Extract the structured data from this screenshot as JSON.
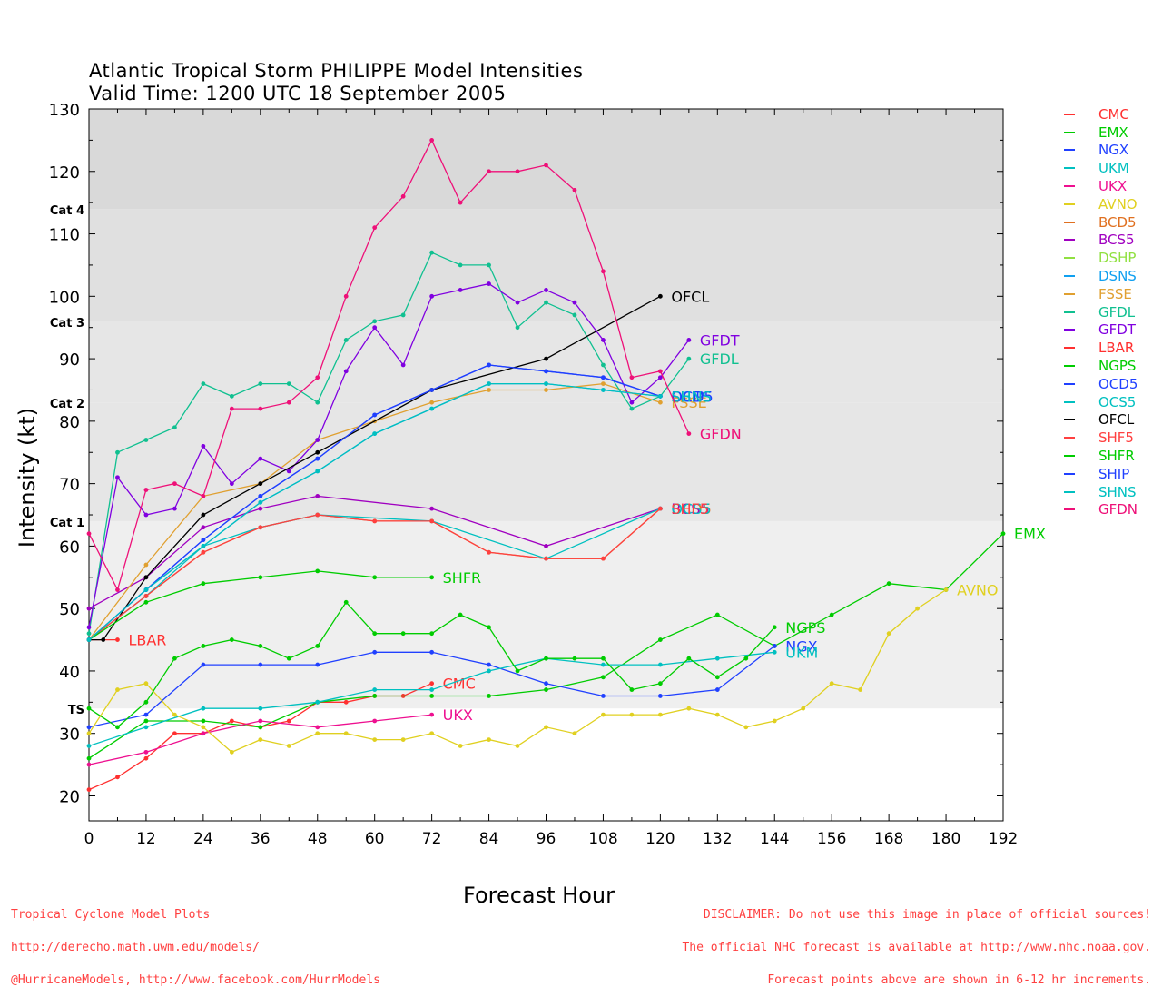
{
  "title": {
    "line1": "Atlantic Tropical Storm PHILIPPE Model Intensities",
    "line2": "Valid Time: 1200 UTC 18 September 2005"
  },
  "footer": {
    "left": [
      "Tropical Cyclone Model Plots",
      "http://derecho.math.uwm.edu/models/",
      "@HurricaneModels, http://www.facebook.com/HurrModels"
    ],
    "right": [
      "DISCLAIMER: Do not use this image in place of official sources!",
      "The official NHC forecast is available at http://www.nhc.noaa.gov.",
      "Forecast points above are shown in 6-12 hr increments."
    ]
  },
  "chart_data": {
    "type": "line",
    "xlabel": "Forecast Hour",
    "ylabel": "Intensity (kt)",
    "xlim": [
      0,
      192
    ],
    "ylim": [
      16,
      130
    ],
    "xticks": [
      0,
      12,
      24,
      36,
      48,
      60,
      72,
      84,
      96,
      108,
      120,
      132,
      144,
      156,
      168,
      180,
      192
    ],
    "yticks": [
      20,
      30,
      40,
      50,
      60,
      70,
      80,
      90,
      100,
      110,
      120,
      130
    ],
    "category_bands": [
      {
        "label": "TS",
        "from": 34,
        "to": 64,
        "color": "#efefef"
      },
      {
        "label": "Cat 1",
        "from": 64,
        "to": 83,
        "color": "#e6e6e6"
      },
      {
        "label": "Cat 2",
        "from": 83,
        "to": 96,
        "color": "#e6e6e6"
      },
      {
        "label": "Cat 3",
        "from": 96,
        "to": 114,
        "color": "#e0e0e0"
      },
      {
        "label": "Cat 4",
        "from": 114,
        "to": 130,
        "color": "#d9d9d9"
      }
    ],
    "series": [
      {
        "name": "CMC",
        "color": "#ff3030",
        "x": [
          0,
          6,
          12,
          18,
          24,
          30,
          36,
          42,
          48,
          54,
          60,
          66,
          72
        ],
        "y": [
          21,
          23,
          26,
          30,
          30,
          32,
          31,
          32,
          35,
          35,
          36,
          36,
          38
        ],
        "end_label": "CMC"
      },
      {
        "name": "EMX",
        "color": "#00cc00",
        "x": [
          0,
          12,
          24,
          36,
          48,
          60,
          72,
          84,
          96,
          108,
          120,
          132,
          144,
          156,
          168,
          180,
          192
        ],
        "y": [
          26,
          32,
          32,
          31,
          35,
          36,
          36,
          36,
          37,
          39,
          45,
          49,
          44,
          49,
          54,
          53,
          62
        ],
        "end_label": "EMX"
      },
      {
        "name": "NGX",
        "color": "#2040ff",
        "x": [
          0,
          12,
          24,
          36,
          48,
          60,
          72,
          84,
          96,
          108,
          120,
          132,
          144
        ],
        "y": [
          31,
          33,
          41,
          41,
          41,
          43,
          43,
          41,
          38,
          36,
          36,
          37,
          44
        ],
        "end_label": "NGX"
      },
      {
        "name": "UKM",
        "color": "#00c0c0",
        "x": [
          0,
          12,
          24,
          36,
          48,
          60,
          72,
          84,
          96,
          108,
          120,
          132,
          144
        ],
        "y": [
          28,
          31,
          34,
          34,
          35,
          37,
          37,
          40,
          42,
          41,
          41,
          42,
          43
        ],
        "end_label": "UKM"
      },
      {
        "name": "UKX",
        "color": "#ee1090",
        "x": [
          0,
          12,
          24,
          36,
          48,
          60,
          72
        ],
        "y": [
          25,
          27,
          30,
          32,
          31,
          32,
          33
        ],
        "end_label": "UKX"
      },
      {
        "name": "AVNO",
        "color": "#e0d020",
        "x": [
          0,
          6,
          12,
          18,
          24,
          30,
          36,
          42,
          48,
          54,
          60,
          66,
          72,
          78,
          84,
          90,
          96,
          102,
          108,
          114,
          120,
          126,
          132,
          138,
          144,
          150,
          156,
          162,
          168,
          174,
          180
        ],
        "y": [
          30,
          37,
          38,
          33,
          31,
          27,
          29,
          28,
          30,
          30,
          29,
          29,
          30,
          28,
          29,
          28,
          31,
          30,
          33,
          33,
          33,
          34,
          33,
          31,
          32,
          34,
          38,
          37,
          46,
          50,
          53
        ],
        "end_label": "AVNO"
      },
      {
        "name": "BCD5",
        "color": "#e07020",
        "x": [
          0,
          12,
          24,
          36,
          48,
          60,
          72,
          84,
          96,
          108,
          120
        ],
        "y": [
          45,
          52,
          59,
          63,
          65,
          64,
          64,
          59,
          58,
          58,
          66
        ],
        "end_label": "BCD5"
      },
      {
        "name": "BCS5",
        "color": "#a000c0",
        "x": [
          0,
          12,
          24,
          36,
          48,
          72,
          96,
          120
        ],
        "y": [
          50,
          55,
          63,
          66,
          68,
          66,
          60,
          66
        ],
        "end_label": "BCS5"
      },
      {
        "name": "DSHP",
        "color": "#90e040",
        "x": [],
        "y": [],
        "end_label": ""
      },
      {
        "name": "DSNS",
        "color": "#10a0f0",
        "x": [
          0,
          12,
          24,
          36,
          48,
          60,
          72,
          84,
          96,
          108,
          120
        ],
        "y": [
          45,
          53,
          60,
          67,
          72,
          78,
          82,
          86,
          86,
          85,
          84
        ],
        "end_label": "DSNS"
      },
      {
        "name": "FSSE",
        "color": "#e0a030",
        "x": [
          0,
          12,
          24,
          36,
          48,
          60,
          72,
          84,
          96,
          108,
          120
        ],
        "y": [
          45,
          57,
          68,
          70,
          77,
          80,
          83,
          85,
          85,
          86,
          83
        ],
        "end_label": "FSSE"
      },
      {
        "name": "GFDL",
        "color": "#10c090",
        "x": [
          0,
          6,
          12,
          18,
          24,
          30,
          36,
          42,
          48,
          54,
          60,
          66,
          72,
          78,
          84,
          90,
          96,
          102,
          108,
          114,
          120,
          126
        ],
        "y": [
          46,
          75,
          77,
          79,
          86,
          84,
          86,
          86,
          83,
          93,
          96,
          97,
          107,
          105,
          105,
          95,
          99,
          97,
          89,
          82,
          84,
          90
        ],
        "end_label": "GFDL"
      },
      {
        "name": "GFDT",
        "color": "#8000e0",
        "x": [
          0,
          6,
          12,
          18,
          24,
          30,
          36,
          42,
          48,
          54,
          60,
          66,
          72,
          78,
          84,
          90,
          96,
          102,
          108,
          114,
          120,
          126
        ],
        "y": [
          47,
          71,
          65,
          66,
          76,
          70,
          74,
          72,
          77,
          88,
          95,
          89,
          100,
          101,
          102,
          99,
          101,
          99,
          93,
          83,
          87,
          93
        ],
        "end_label": "GFDT"
      },
      {
        "name": "LBAR",
        "color": "#ff3030",
        "x": [
          0,
          6
        ],
        "y": [
          45,
          45
        ],
        "end_label": "LBAR"
      },
      {
        "name": "NGPS",
        "color": "#00cc00",
        "x": [
          0,
          6,
          12,
          18,
          24,
          30,
          36,
          42,
          48,
          54,
          60,
          66,
          72,
          78,
          84,
          90,
          96,
          102,
          108,
          114,
          120,
          126,
          132,
          138,
          144
        ],
        "y": [
          34,
          31,
          35,
          42,
          44,
          45,
          44,
          42,
          44,
          51,
          46,
          46,
          46,
          49,
          47,
          40,
          42,
          42,
          42,
          37,
          38,
          42,
          39,
          42,
          47
        ],
        "end_label": "NGPS"
      },
      {
        "name": "OCD5",
        "color": "#2040ff",
        "x": [
          0,
          12,
          24,
          36,
          48,
          60,
          72,
          84,
          96,
          108,
          120
        ],
        "y": [
          45,
          53,
          61,
          68,
          74,
          81,
          85,
          89,
          88,
          87,
          84
        ],
        "end_label": "OCD5"
      },
      {
        "name": "OCS5",
        "color": "#00c0c0",
        "x": [
          0,
          12,
          24,
          36,
          48,
          72,
          96,
          120
        ],
        "y": [
          45,
          52,
          60,
          63,
          65,
          64,
          58,
          66
        ],
        "end_label": "OCS5"
      },
      {
        "name": "OFCL",
        "color": "#000000",
        "x": [
          0,
          3,
          12,
          24,
          36,
          48,
          72,
          96,
          120
        ],
        "y": [
          45,
          45,
          55,
          65,
          70,
          75,
          85,
          90,
          100
        ],
        "end_label": "OFCL"
      },
      {
        "name": "SHF5",
        "color": "#ff4040",
        "x": [
          0,
          12,
          24,
          36,
          48,
          60,
          72,
          84,
          96,
          108,
          120
        ],
        "y": [
          45,
          52,
          59,
          63,
          65,
          64,
          64,
          59,
          58,
          58,
          66
        ],
        "end_label": "SHF5"
      },
      {
        "name": "SHFR",
        "color": "#00cc00",
        "x": [
          0,
          12,
          24,
          36,
          48,
          60,
          72
        ],
        "y": [
          45,
          51,
          54,
          55,
          56,
          55,
          55
        ],
        "end_label": "SHFR"
      },
      {
        "name": "SHIP",
        "color": "#2040ff",
        "x": [
          0,
          12,
          24,
          36,
          48,
          60,
          72,
          84,
          96,
          108,
          120
        ],
        "y": [
          45,
          53,
          61,
          68,
          74,
          81,
          85,
          89,
          88,
          87,
          84
        ],
        "end_label": "SHIP"
      },
      {
        "name": "SHNS",
        "color": "#00c0c0",
        "x": [
          0,
          12,
          24,
          36,
          48,
          60,
          72,
          84,
          96,
          108,
          120
        ],
        "y": [
          45,
          53,
          60,
          67,
          72,
          78,
          82,
          86,
          86,
          85,
          84
        ],
        "end_label": "SHNS"
      },
      {
        "name": "GFDN",
        "color": "#ee1078",
        "x": [
          0,
          6,
          12,
          18,
          24,
          30,
          36,
          42,
          48,
          54,
          60,
          66,
          72,
          78,
          84,
          90,
          96,
          102,
          108,
          114,
          120,
          126
        ],
        "y": [
          62,
          53,
          69,
          70,
          68,
          82,
          82,
          83,
          87,
          100,
          111,
          116,
          125,
          115,
          120,
          120,
          121,
          117,
          104,
          87,
          88,
          78
        ],
        "end_label": "GFDN"
      }
    ]
  }
}
